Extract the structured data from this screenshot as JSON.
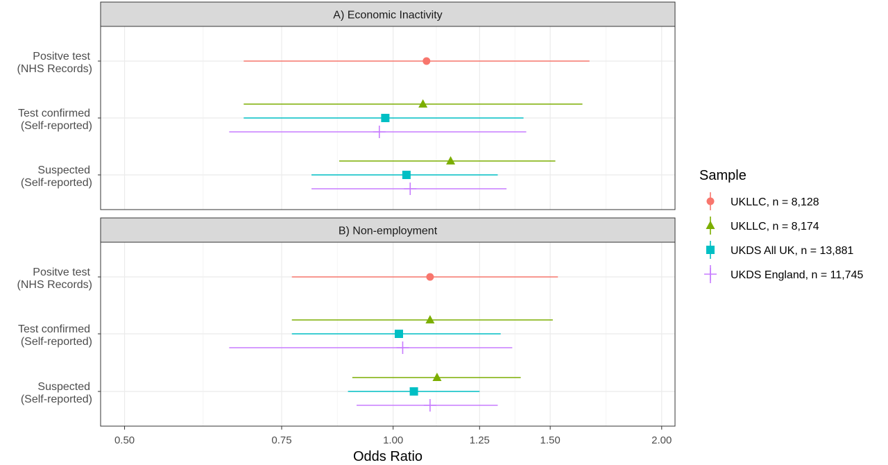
{
  "chart_data": {
    "type": "forest",
    "xlabel": "Odds Ratio",
    "x_scale": "log",
    "xlim": [
      0.47,
      2.07
    ],
    "x_ticks": [
      0.5,
      0.75,
      1.0,
      1.25,
      1.5,
      2.0
    ],
    "x_tick_labels": [
      "0.50",
      "0.75",
      "1.00",
      "1.25",
      "1.50",
      "2.00"
    ],
    "grid": true,
    "legend": {
      "title": "Sample",
      "position": "right",
      "entries": [
        {
          "label": "UKLLC, n = 8,128",
          "color": "#F8766D",
          "shape": "circle"
        },
        {
          "label": "UKLLC, n = 8,174",
          "color": "#7CAE00",
          "shape": "triangle"
        },
        {
          "label": "UKDS All UK, n = 13,881",
          "color": "#00BFC4",
          "shape": "square"
        },
        {
          "label": "UKDS England, n = 11,745",
          "color": "#C77CFF",
          "shape": "plus"
        }
      ]
    },
    "categories": [
      {
        "line1": "Positve test",
        "line2": "(NHS Records)"
      },
      {
        "line1": "Test confirmed",
        "line2": "(Self-reported)"
      },
      {
        "line1": "Suspected",
        "line2": "(Self-reported)"
      }
    ],
    "panels": [
      {
        "title": "A) Economic Inactivity",
        "points": [
          {
            "category": 0,
            "series": 0,
            "or": 1.09,
            "lo": 0.68,
            "hi": 1.66
          },
          {
            "category": 1,
            "series": 1,
            "or": 1.08,
            "lo": 0.68,
            "hi": 1.63
          },
          {
            "category": 1,
            "series": 2,
            "or": 0.98,
            "lo": 0.68,
            "hi": 1.4
          },
          {
            "category": 1,
            "series": 3,
            "or": 0.965,
            "lo": 0.655,
            "hi": 1.41
          },
          {
            "category": 2,
            "series": 1,
            "or": 1.16,
            "lo": 0.87,
            "hi": 1.52
          },
          {
            "category": 2,
            "series": 2,
            "or": 1.035,
            "lo": 0.81,
            "hi": 1.31
          },
          {
            "category": 2,
            "series": 3,
            "or": 1.045,
            "lo": 0.81,
            "hi": 1.34
          }
        ]
      },
      {
        "title": "B) Non-employment",
        "points": [
          {
            "category": 0,
            "series": 0,
            "or": 1.1,
            "lo": 0.77,
            "hi": 1.53
          },
          {
            "category": 1,
            "series": 1,
            "or": 1.1,
            "lo": 0.77,
            "hi": 1.51
          },
          {
            "category": 1,
            "series": 2,
            "or": 1.015,
            "lo": 0.77,
            "hi": 1.32
          },
          {
            "category": 1,
            "series": 3,
            "or": 1.025,
            "lo": 0.655,
            "hi": 1.36
          },
          {
            "category": 2,
            "series": 1,
            "or": 1.12,
            "lo": 0.9,
            "hi": 1.39
          },
          {
            "category": 2,
            "series": 2,
            "or": 1.055,
            "lo": 0.89,
            "hi": 1.25
          },
          {
            "category": 2,
            "series": 3,
            "or": 1.1,
            "lo": 0.91,
            "hi": 1.31
          }
        ]
      }
    ]
  }
}
